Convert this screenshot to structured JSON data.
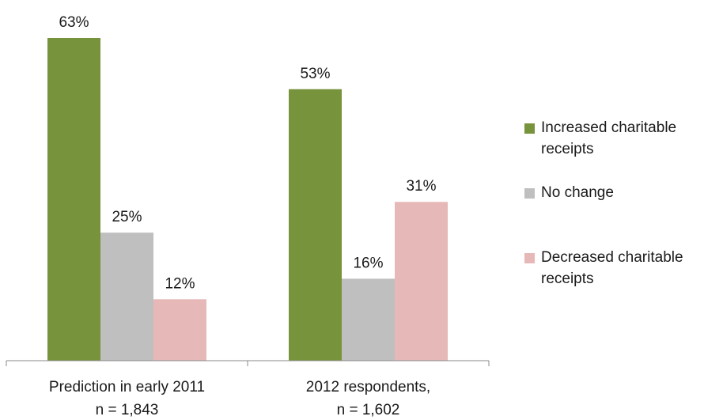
{
  "chart_data": {
    "type": "bar",
    "categories": [
      "Prediction in early 2011\nn = 1,843",
      "2012 respondents,\nn = 1,602"
    ],
    "series": [
      {
        "name": "Increased charitable receipts",
        "values": [
          63,
          53
        ],
        "labels": [
          "63%",
          "53%"
        ],
        "color": "#77933c"
      },
      {
        "name": "No change",
        "values": [
          25,
          16
        ],
        "labels": [
          "25%",
          "16%"
        ],
        "color": "#bfbfbf"
      },
      {
        "name": "Decreased charitable receipts",
        "values": [
          12,
          31
        ],
        "labels": [
          "12%",
          "31%"
        ],
        "color": "#e6b9b8"
      }
    ],
    "ylim": [
      0,
      63
    ],
    "grid": false,
    "legend_position": "right"
  }
}
